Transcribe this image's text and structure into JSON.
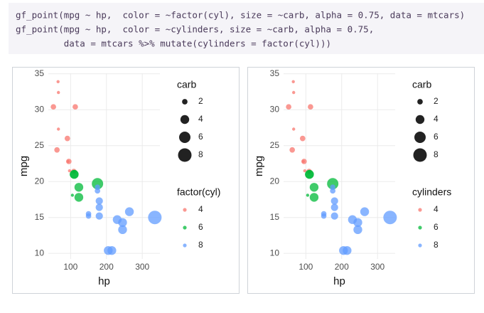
{
  "code": [
    "gf_point(mpg ~ hp,  color = ~factor(cyl), size = ~carb, alpha = 0.75, data = mtcars)",
    "gf_point(mpg ~ hp,  color = ~cylinders, size = ~carb, alpha = 0.75,",
    "         data = mtcars %>% mutate(cylinders = factor(cyl)))"
  ],
  "chart_data": [
    {
      "type": "scatter",
      "x_label": "hp",
      "y_label": "mpg",
      "xlim": [
        37.85,
        349.15
      ],
      "xticks": [
        100,
        200,
        300
      ],
      "ylim": [
        9.225,
        35.075
      ],
      "yticks": [
        10,
        15,
        20,
        25,
        30,
        35
      ],
      "grid": true,
      "alpha": 0.75,
      "size_legend": {
        "title": "carb",
        "values": [
          2,
          4,
          6,
          8
        ]
      },
      "color_legend_title": "factor(cyl)",
      "series": [
        {
          "name": "4",
          "color": "#F8766D",
          "x": [
            93,
            62,
            95,
            66,
            52,
            65,
            97,
            66,
            91,
            113,
            109
          ],
          "y": [
            22.8,
            24.4,
            22.8,
            32.4,
            30.4,
            33.9,
            21.5,
            27.3,
            26,
            30.4,
            21.4
          ],
          "size": [
            1,
            2,
            2,
            1,
            2,
            1,
            1,
            1,
            2,
            2,
            2
          ]
        },
        {
          "name": "6",
          "color": "#00BA38",
          "x": [
            110,
            110,
            110,
            105,
            123,
            123,
            175
          ],
          "y": [
            21,
            21,
            21.4,
            18.1,
            19.2,
            17.8,
            19.7
          ],
          "size": [
            4,
            4,
            1,
            1,
            4,
            4,
            6
          ]
        },
        {
          "name": "8",
          "color": "#619CFF",
          "x": [
            175,
            245,
            180,
            180,
            180,
            205,
            215,
            230,
            150,
            150,
            245,
            175,
            264,
            335
          ],
          "y": [
            18.7,
            14.3,
            16.4,
            17.3,
            15.2,
            10.4,
            10.4,
            14.7,
            15.5,
            15.2,
            13.3,
            19.2,
            15.8,
            15
          ],
          "size": [
            2,
            4,
            3,
            3,
            3,
            4,
            4,
            4,
            2,
            2,
            4,
            2,
            4,
            8
          ]
        }
      ]
    },
    {
      "type": "scatter",
      "x_label": "hp",
      "y_label": "mpg",
      "xlim": [
        37.85,
        349.15
      ],
      "xticks": [
        100,
        200,
        300
      ],
      "ylim": [
        9.225,
        35.075
      ],
      "yticks": [
        10,
        15,
        20,
        25,
        30,
        35
      ],
      "grid": true,
      "alpha": 0.75,
      "size_legend": {
        "title": "carb",
        "values": [
          2,
          4,
          6,
          8
        ]
      },
      "color_legend_title": "cylinders",
      "series": [
        {
          "name": "4",
          "color": "#F8766D",
          "x": [
            93,
            62,
            95,
            66,
            52,
            65,
            97,
            66,
            91,
            113,
            109
          ],
          "y": [
            22.8,
            24.4,
            22.8,
            32.4,
            30.4,
            33.9,
            21.5,
            27.3,
            26,
            30.4,
            21.4
          ],
          "size": [
            1,
            2,
            2,
            1,
            2,
            1,
            1,
            1,
            2,
            2,
            2
          ]
        },
        {
          "name": "6",
          "color": "#00BA38",
          "x": [
            110,
            110,
            110,
            105,
            123,
            123,
            175
          ],
          "y": [
            21,
            21,
            21.4,
            18.1,
            19.2,
            17.8,
            19.7
          ],
          "size": [
            4,
            4,
            1,
            1,
            4,
            4,
            6
          ]
        },
        {
          "name": "8",
          "color": "#619CFF",
          "x": [
            175,
            245,
            180,
            180,
            180,
            205,
            215,
            230,
            150,
            150,
            245,
            175,
            264,
            335
          ],
          "y": [
            18.7,
            14.3,
            16.4,
            17.3,
            15.2,
            10.4,
            10.4,
            14.7,
            15.5,
            15.2,
            13.3,
            19.2,
            15.8,
            15
          ],
          "size": [
            2,
            4,
            3,
            3,
            3,
            4,
            4,
            4,
            2,
            2,
            4,
            2,
            4,
            8
          ]
        }
      ]
    }
  ]
}
